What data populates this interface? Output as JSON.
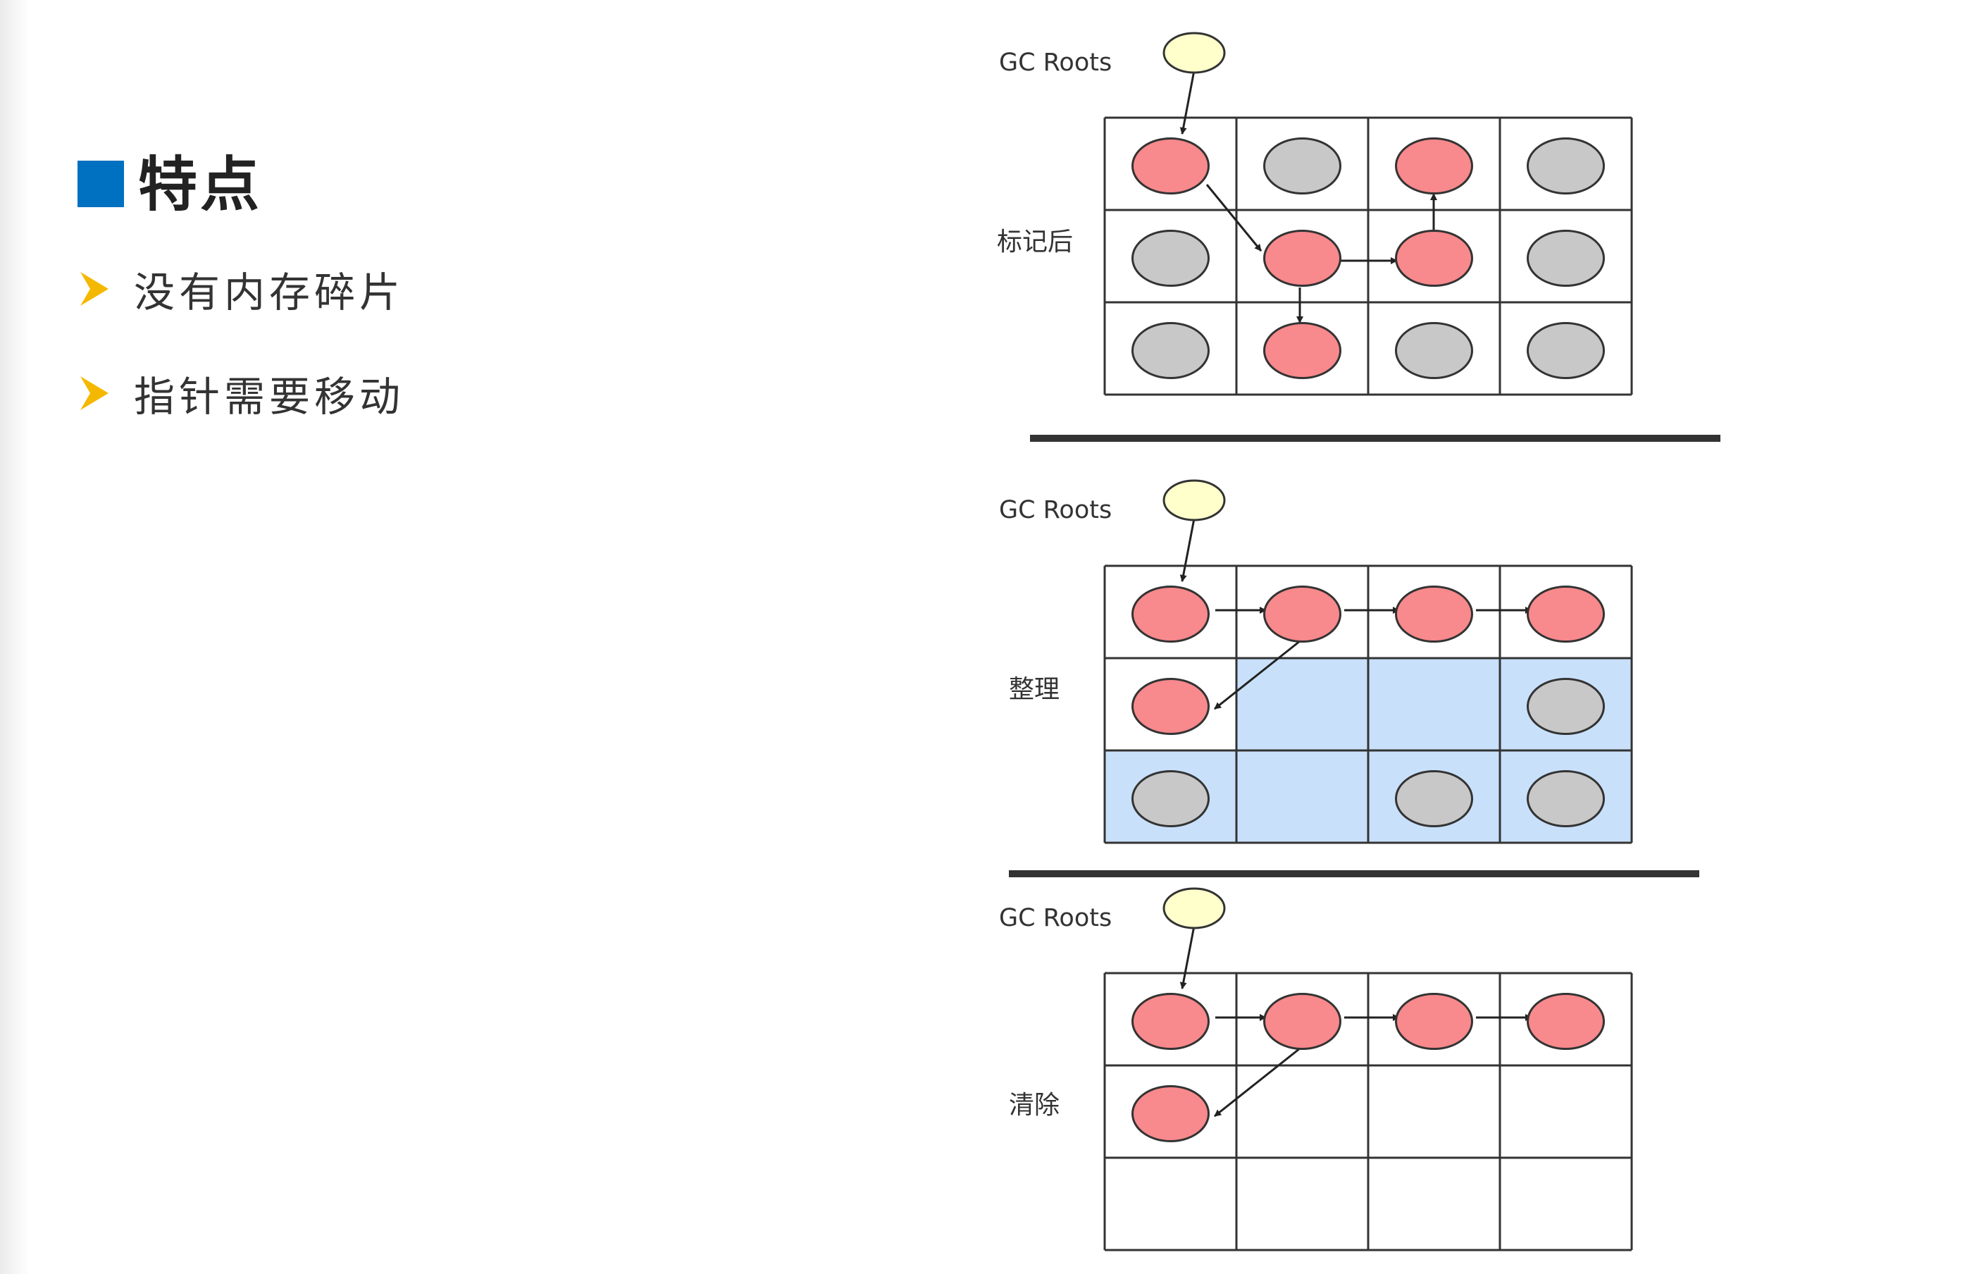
{
  "slide": {
    "section_title": "特点",
    "bullets": [
      "没有内存碎片",
      "指针需要移动"
    ],
    "colors": {
      "accent_square": "#0070c0",
      "bullet_arrow": "#f5b800",
      "live_object": "#f8898c",
      "garbage_object": "#c8c8c8",
      "root_node": "#ffffcc",
      "freed_cell": "#c9e0fb"
    }
  },
  "diagram": {
    "panels": [
      {
        "root_label": "GC Roots",
        "stage_label": "标记后",
        "cells": [
          [
            "live",
            "garbage",
            "live",
            "garbage"
          ],
          [
            "garbage",
            "live",
            "live",
            "garbage"
          ],
          [
            "garbage",
            "live",
            "garbage",
            "garbage"
          ]
        ],
        "highlighted_cells": []
      },
      {
        "root_label": "GC Roots",
        "stage_label": "整理",
        "cells": [
          [
            "live",
            "live",
            "live",
            "live"
          ],
          [
            "live",
            "empty",
            "empty",
            "garbage"
          ],
          [
            "garbage",
            "empty",
            "garbage",
            "garbage"
          ]
        ],
        "highlighted_cells": [
          [
            1,
            1
          ],
          [
            1,
            2
          ],
          [
            1,
            3
          ],
          [
            2,
            0
          ],
          [
            2,
            1
          ],
          [
            2,
            2
          ],
          [
            2,
            3
          ]
        ]
      },
      {
        "root_label": "GC Roots",
        "stage_label": "清除",
        "cells": [
          [
            "live",
            "live",
            "live",
            "live"
          ],
          [
            "live",
            "empty",
            "empty",
            "empty"
          ],
          [
            "empty",
            "empty",
            "empty",
            "empty"
          ]
        ],
        "highlighted_cells": []
      }
    ]
  }
}
